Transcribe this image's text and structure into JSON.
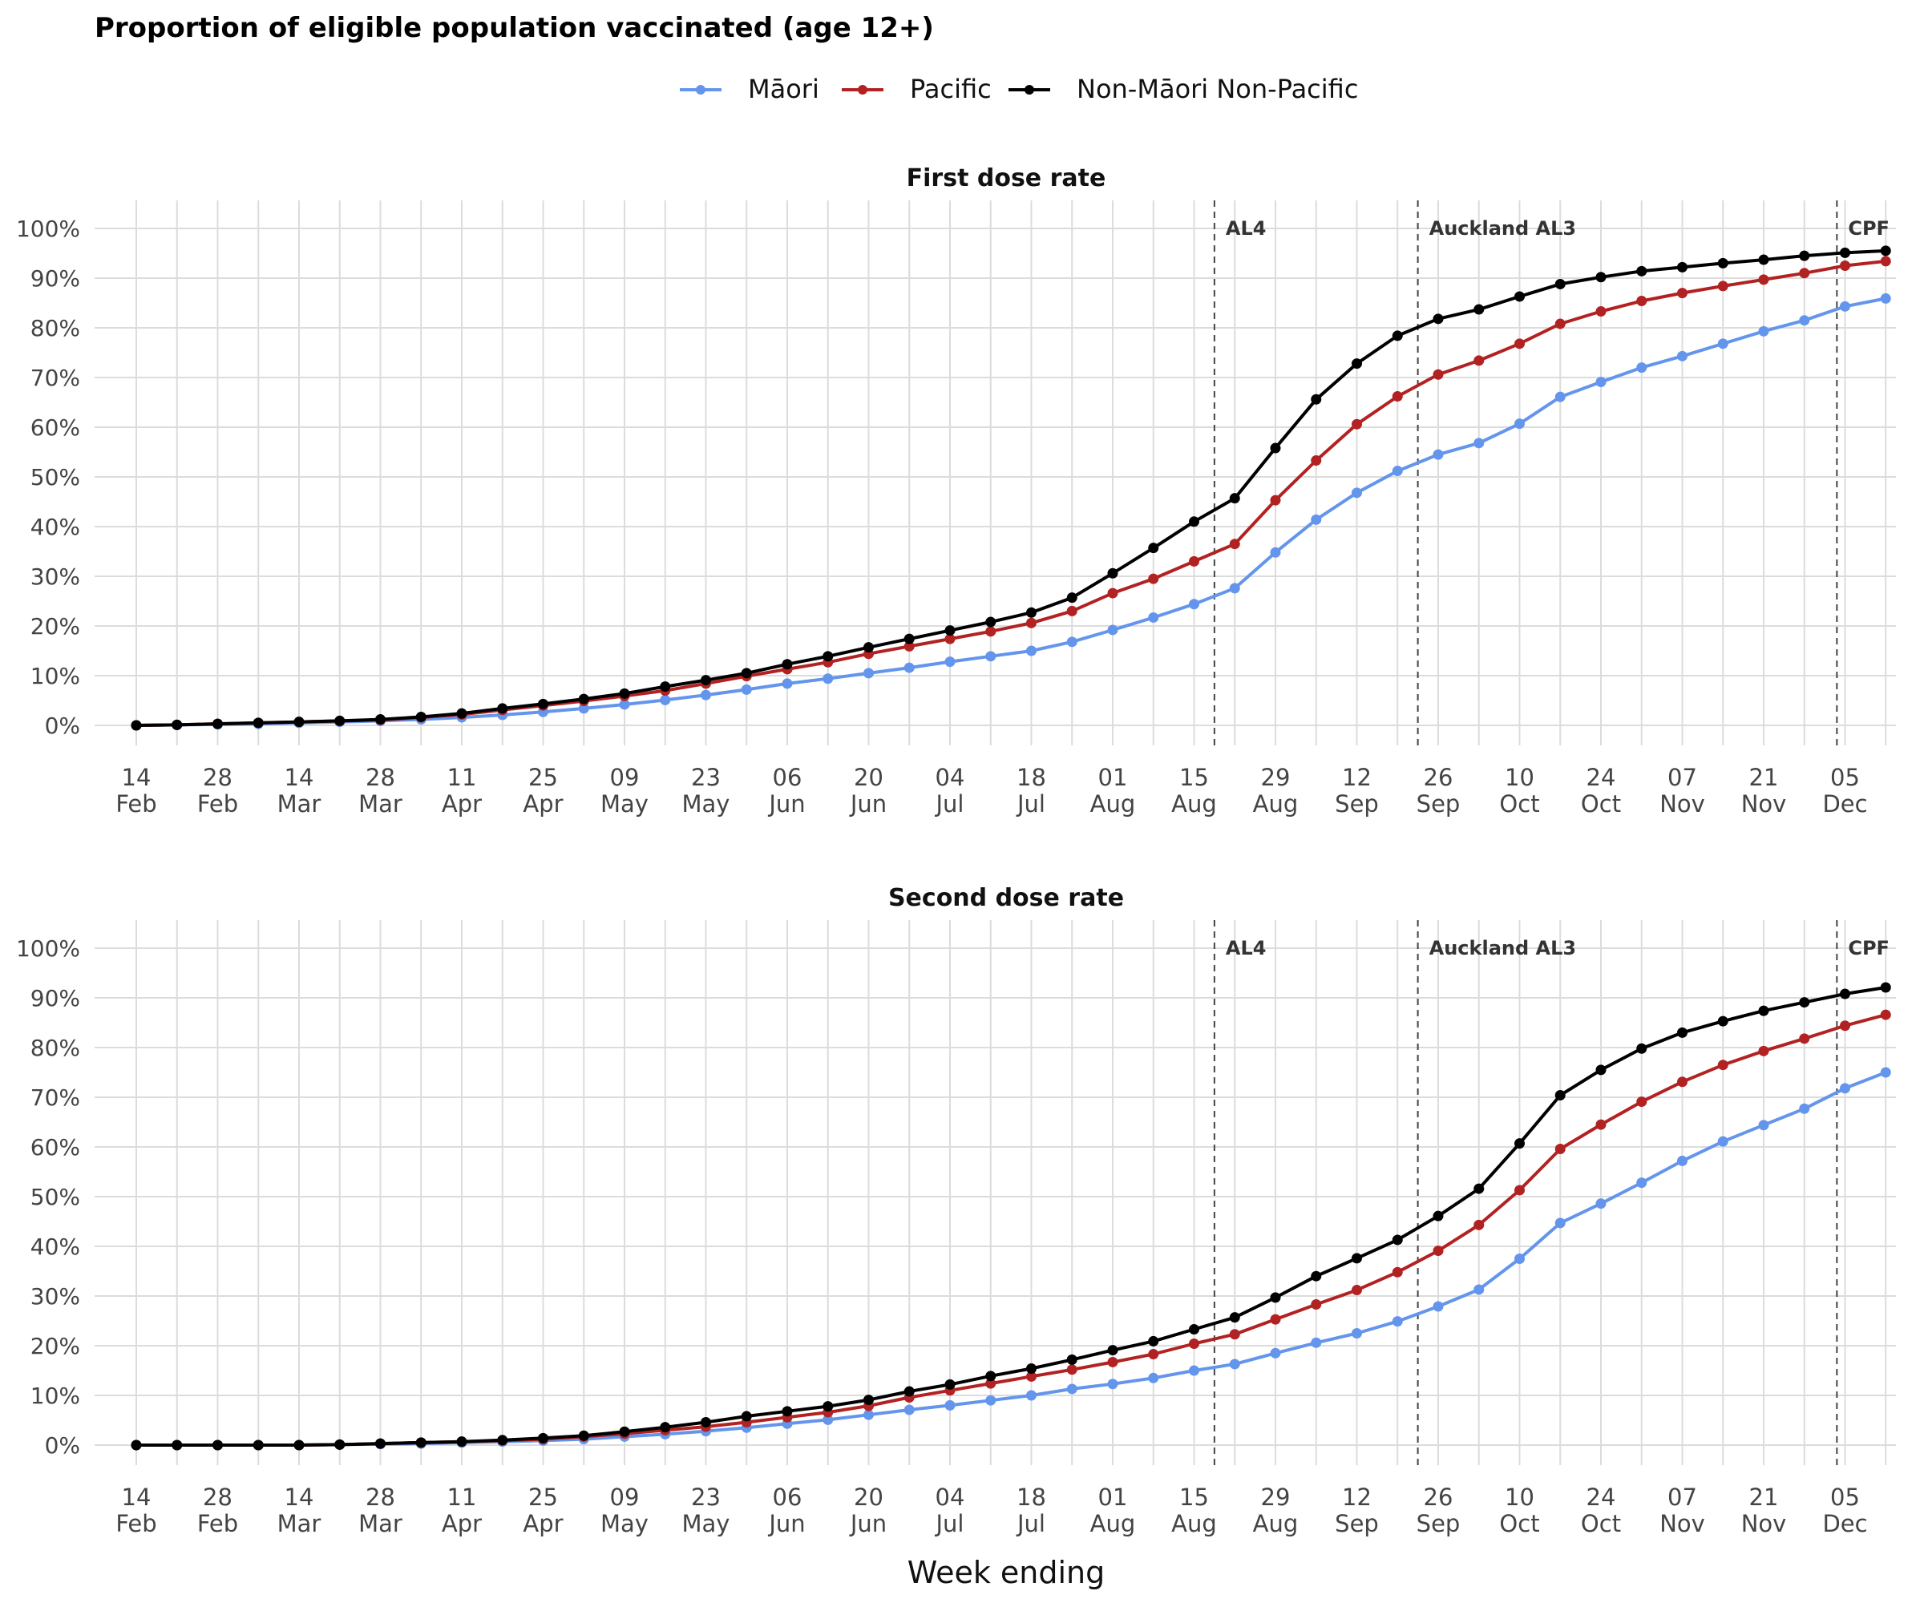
{
  "title": "Proportion of eligible population vaccinated (age 12+)",
  "chart_data": {
    "type": "line",
    "xlabel": "Week ending",
    "x": [
      "14 Feb",
      "21 Feb",
      "28 Feb",
      "07 Mar",
      "14 Mar",
      "21 Mar",
      "28 Mar",
      "04 Apr",
      "11 Apr",
      "18 Apr",
      "25 Apr",
      "02 May",
      "09 May",
      "16 May",
      "23 May",
      "30 May",
      "06 Jun",
      "13 Jun",
      "20 Jun",
      "27 Jun",
      "04 Jul",
      "11 Jul",
      "18 Jul",
      "25 Jul",
      "01 Aug",
      "08 Aug",
      "15 Aug",
      "22 Aug",
      "29 Aug",
      "05 Sep",
      "12 Sep",
      "19 Sep",
      "26 Sep",
      "03 Oct",
      "10 Oct",
      "17 Oct",
      "24 Oct",
      "31 Oct",
      "07 Nov",
      "14 Nov",
      "21 Nov",
      "28 Nov",
      "05 Dec",
      "12 Dec"
    ],
    "x_tick_labels": [
      {
        "day": "14",
        "month": "Feb"
      },
      {
        "day": "28",
        "month": "Feb"
      },
      {
        "day": "14",
        "month": "Mar"
      },
      {
        "day": "28",
        "month": "Mar"
      },
      {
        "day": "11",
        "month": "Apr"
      },
      {
        "day": "25",
        "month": "Apr"
      },
      {
        "day": "09",
        "month": "May"
      },
      {
        "day": "23",
        "month": "May"
      },
      {
        "day": "06",
        "month": "Jun"
      },
      {
        "day": "20",
        "month": "Jun"
      },
      {
        "day": "04",
        "month": "Jul"
      },
      {
        "day": "18",
        "month": "Jul"
      },
      {
        "day": "01",
        "month": "Aug"
      },
      {
        "day": "15",
        "month": "Aug"
      },
      {
        "day": "29",
        "month": "Aug"
      },
      {
        "day": "12",
        "month": "Sep"
      },
      {
        "day": "26",
        "month": "Sep"
      },
      {
        "day": "10",
        "month": "Oct"
      },
      {
        "day": "24",
        "month": "Oct"
      },
      {
        "day": "07",
        "month": "Nov"
      },
      {
        "day": "21",
        "month": "Nov"
      },
      {
        "day": "05",
        "month": "Dec"
      }
    ],
    "y_ticks": [
      "0%",
      "10%",
      "20%",
      "30%",
      "40%",
      "50%",
      "60%",
      "70%",
      "80%",
      "90%",
      "100%"
    ],
    "ylim": [
      0,
      100
    ],
    "legend": {
      "placement": "top"
    },
    "series_meta": [
      {
        "name": "Māori",
        "color": "#6495ED"
      },
      {
        "name": "Pacific",
        "color": "#B22222"
      },
      {
        "name": "Non-Māori Non-Pacific",
        "color": "#000000"
      }
    ],
    "events": [
      {
        "label": "AL4",
        "x_index": 26.5
      },
      {
        "label": "Auckland AL3",
        "x_index": 31.5
      },
      {
        "label": "CPF",
        "x_index": 41.8
      }
    ],
    "panels": [
      {
        "title": "First dose rate",
        "series": [
          {
            "name": "Māori",
            "values": [
              0,
              0.1,
              0.2,
              0.3,
              0.5,
              0.7,
              0.9,
              1.2,
              1.6,
              2.1,
              2.7,
              3.4,
              4.2,
              5.1,
              6.1,
              7.2,
              8.4,
              9.4,
              10.5,
              11.6,
              12.8,
              13.9,
              15,
              16.8,
              19.2,
              21.7,
              24.4,
              27.6,
              34.8,
              41.4,
              46.8,
              51.2,
              54.5,
              56.8,
              60.7,
              66.1,
              69.1,
              72,
              74.3,
              76.8,
              79.3,
              81.5,
              84.3,
              85.9
            ]
          },
          {
            "name": "Pacific",
            "values": [
              0,
              0.1,
              0.3,
              0.5,
              0.7,
              0.9,
              1.1,
              1.6,
              2.2,
              3.1,
              4,
              4.9,
              5.9,
              7,
              8.4,
              9.9,
              11.3,
              12.7,
              14.4,
              15.9,
              17.4,
              18.9,
              20.6,
              23,
              26.6,
              29.5,
              33,
              36.5,
              45.3,
              53.3,
              60.6,
              66.2,
              70.6,
              73.4,
              76.8,
              80.8,
              83.3,
              85.4,
              87,
              88.4,
              89.7,
              91,
              92.5,
              93.4
            ]
          },
          {
            "name": "Non-Māori Non-Pacific",
            "values": [
              0,
              0.1,
              0.3,
              0.5,
              0.7,
              0.9,
              1.2,
              1.7,
              2.4,
              3.4,
              4.3,
              5.3,
              6.4,
              7.8,
              9.1,
              10.5,
              12.3,
              13.9,
              15.7,
              17.4,
              19.1,
              20.8,
              22.7,
              25.7,
              30.6,
              35.7,
              41,
              45.7,
              55.8,
              65.6,
              72.8,
              78.4,
              81.8,
              83.7,
              86.3,
              88.8,
              90.2,
              91.4,
              92.2,
              93,
              93.7,
              94.5,
              95.1,
              95.5
            ]
          }
        ]
      },
      {
        "title": "Second dose rate",
        "series": [
          {
            "name": "Māori",
            "values": [
              0,
              0,
              0,
              0,
              0,
              0.1,
              0.2,
              0.3,
              0.5,
              0.7,
              0.9,
              1.2,
              1.7,
              2.2,
              2.8,
              3.5,
              4.3,
              5.1,
              6.1,
              7.1,
              8,
              9,
              10,
              11.3,
              12.3,
              13.5,
              15,
              16.3,
              18.5,
              20.6,
              22.5,
              24.9,
              27.9,
              31.3,
              37.5,
              44.7,
              48.6,
              52.8,
              57.2,
              61.1,
              64.4,
              67.7,
              71.8,
              75
            ]
          },
          {
            "name": "Pacific",
            "values": [
              0,
              0,
              0,
              0,
              0,
              0.1,
              0.3,
              0.5,
              0.7,
              0.9,
              1.2,
              1.7,
              2.3,
              3,
              3.7,
              4.6,
              5.6,
              6.6,
              7.9,
              9.6,
              11,
              12.4,
              13.8,
              15.2,
              16.7,
              18.3,
              20.4,
              22.3,
              25.3,
              28.3,
              31.2,
              34.8,
              39.1,
              44.3,
              51.3,
              59.6,
              64.5,
              69.1,
              73.1,
              76.5,
              79.3,
              81.8,
              84.4,
              86.6
            ]
          },
          {
            "name": "Non-Māori Non-Pacific",
            "values": [
              0,
              0,
              0,
              0,
              0,
              0.1,
              0.3,
              0.5,
              0.7,
              1,
              1.4,
              1.9,
              2.7,
              3.6,
              4.6,
              5.8,
              6.8,
              7.8,
              9.1,
              10.8,
              12.2,
              13.9,
              15.4,
              17.2,
              19.1,
              20.9,
              23.3,
              25.7,
              29.7,
              34,
              37.6,
              41.3,
              46.1,
              51.6,
              60.7,
              70.4,
              75.5,
              79.8,
              83,
              85.3,
              87.4,
              89.1,
              90.8,
              92.1
            ]
          }
        ]
      }
    ]
  }
}
